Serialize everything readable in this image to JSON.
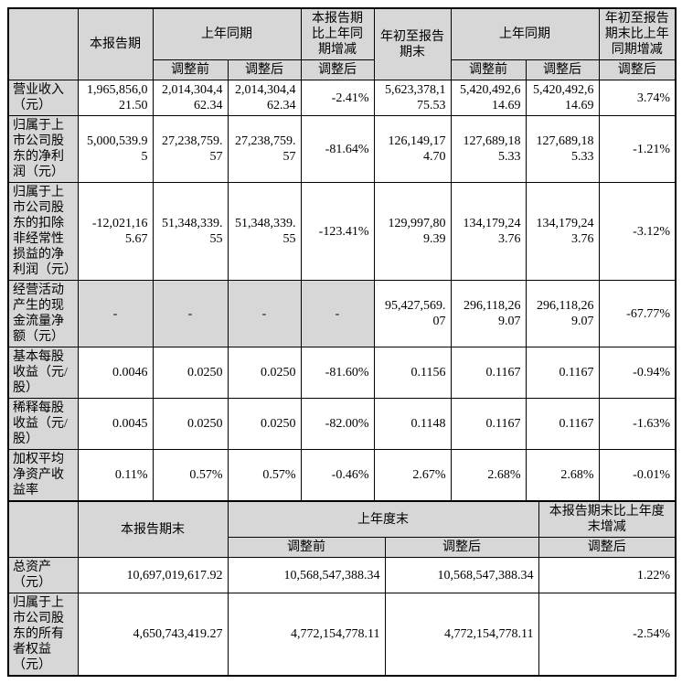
{
  "styles": {
    "header_bg": "#d7d7d7",
    "border_color": "#000000",
    "page_bg": "#ffffff",
    "text_color": "#000000"
  },
  "summary_table": {
    "headers": {
      "current_period": "本报告期",
      "prior_year_same_period": "上年同期",
      "current_vs_prior_change": "本报告期比上年同期增减",
      "ytd_period_end": "年初至报告期末",
      "prior_year_same_period_2": "上年同期",
      "ytd_vs_prior_change": "年初至报告期末比上年同期增减",
      "adjust_before": "调整前",
      "adjust_after": "调整后"
    },
    "rows": [
      {
        "label": "营业收入（元）",
        "values": [
          "1,965,856,021.50",
          "2,014,304,462.34",
          "2,014,304,462.34",
          "-2.41%",
          "5,623,378,175.53",
          "5,420,492,614.69",
          "5,420,492,614.69",
          "3.74%"
        ],
        "shaded_cells": []
      },
      {
        "label": "归属于上市公司股东的净利润（元）",
        "values": [
          "5,000,539.95",
          "27,238,759.57",
          "27,238,759.57",
          "-81.64%",
          "126,149,174.70",
          "127,689,185.33",
          "127,689,185.33",
          "-1.21%"
        ],
        "shaded_cells": []
      },
      {
        "label": "归属于上市公司股东的扣除非经常性损益的净利润（元）",
        "values": [
          "-12,021,165.67",
          "51,348,339.55",
          "51,348,339.55",
          "-123.41%",
          "129,997,809.39",
          "134,179,243.76",
          "134,179,243.76",
          "-3.12%"
        ],
        "shaded_cells": []
      },
      {
        "label": "经营活动产生的现金流量净额（元）",
        "values": [
          "-",
          "-",
          "-",
          "-",
          "95,427,569.07",
          "296,118,269.07",
          "296,118,269.07",
          "-67.77%"
        ],
        "shaded_cells": [
          0,
          1,
          2,
          3
        ]
      },
      {
        "label": "基本每股收益（元/股）",
        "values": [
          "0.0046",
          "0.0250",
          "0.0250",
          "-81.60%",
          "0.1156",
          "0.1167",
          "0.1167",
          "-0.94%"
        ],
        "shaded_cells": []
      },
      {
        "label": "稀释每股收益（元/股）",
        "values": [
          "0.0045",
          "0.0250",
          "0.0250",
          "-82.00%",
          "0.1148",
          "0.1167",
          "0.1167",
          "-1.63%"
        ],
        "shaded_cells": []
      },
      {
        "label": "加权平均净资产收益率",
        "values": [
          "0.11%",
          "0.57%",
          "0.57%",
          "-0.46%",
          "2.67%",
          "2.68%",
          "2.68%",
          "-0.01%"
        ],
        "shaded_cells": []
      }
    ]
  },
  "balance_table": {
    "headers": {
      "current_period_end": "本报告期末",
      "prior_year_end": "上年度末",
      "current_vs_prior_year_end_change": "本报告期末比上年度末增减",
      "adjust_before": "调整前",
      "adjust_after": "调整后"
    },
    "rows": [
      {
        "label": "总资产（元）",
        "values": [
          "10,697,019,617.92",
          "10,568,547,388.34",
          "10,568,547,388.34",
          "1.22%"
        ],
        "shaded_cells": []
      },
      {
        "label": "归属于上市公司股东的所有者权益（元）",
        "values": [
          "4,650,743,419.27",
          "4,772,154,778.11",
          "4,772,154,778.11",
          "-2.54%"
        ],
        "shaded_cells": []
      }
    ]
  }
}
